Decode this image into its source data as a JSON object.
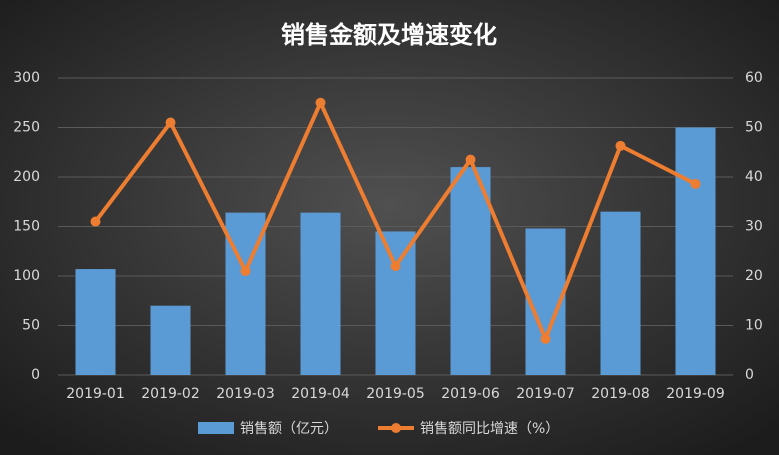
{
  "chart_data": {
    "type": "bar_line",
    "title": "销售金额及增速变化",
    "categories": [
      "2019-01",
      "2019-02",
      "2019-03",
      "2019-04",
      "2019-05",
      "2019-06",
      "2019-07",
      "2019-08",
      "2019-09"
    ],
    "series": [
      {
        "name": "销售额（亿元）",
        "type": "bar",
        "color": "#5b9bd5",
        "values": [
          107,
          70,
          164,
          164,
          145,
          210,
          148,
          165,
          250
        ]
      },
      {
        "name": "销售额同比增速（%）",
        "type": "line",
        "axis": "y2",
        "color": "#ed7d31",
        "values": [
          31,
          51,
          21,
          55,
          22,
          43.5,
          7.3,
          46.3,
          38.6
        ]
      }
    ],
    "ylim": [
      0,
      300
    ],
    "yticks": [
      0,
      50,
      100,
      150,
      200,
      250,
      300
    ],
    "y2lim": [
      0,
      60
    ],
    "y2ticks": [
      0,
      10,
      20,
      30,
      40,
      50,
      60
    ],
    "grid": true,
    "legend": "bottom"
  }
}
